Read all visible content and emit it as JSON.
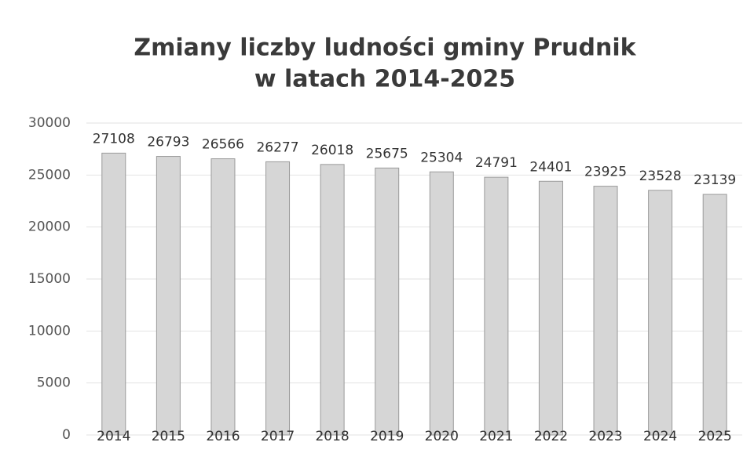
{
  "chart_data": {
    "type": "bar",
    "title": [
      "Zmiany liczby ludności gminy Prudnik",
      "w latach 2014-2025"
    ],
    "categories": [
      "2014",
      "2015",
      "2016",
      "2017",
      "2018",
      "2019",
      "2020",
      "2021",
      "2022",
      "2023",
      "2024",
      "2025"
    ],
    "values": [
      27108,
      26793,
      26566,
      26277,
      26018,
      25675,
      25304,
      24791,
      24401,
      23925,
      23528,
      23139
    ],
    "color": "#d6d6d6",
    "ylim": [
      0,
      30000
    ],
    "yticks": [
      0,
      5000,
      10000,
      15000,
      20000,
      25000,
      30000
    ],
    "grid": true
  }
}
